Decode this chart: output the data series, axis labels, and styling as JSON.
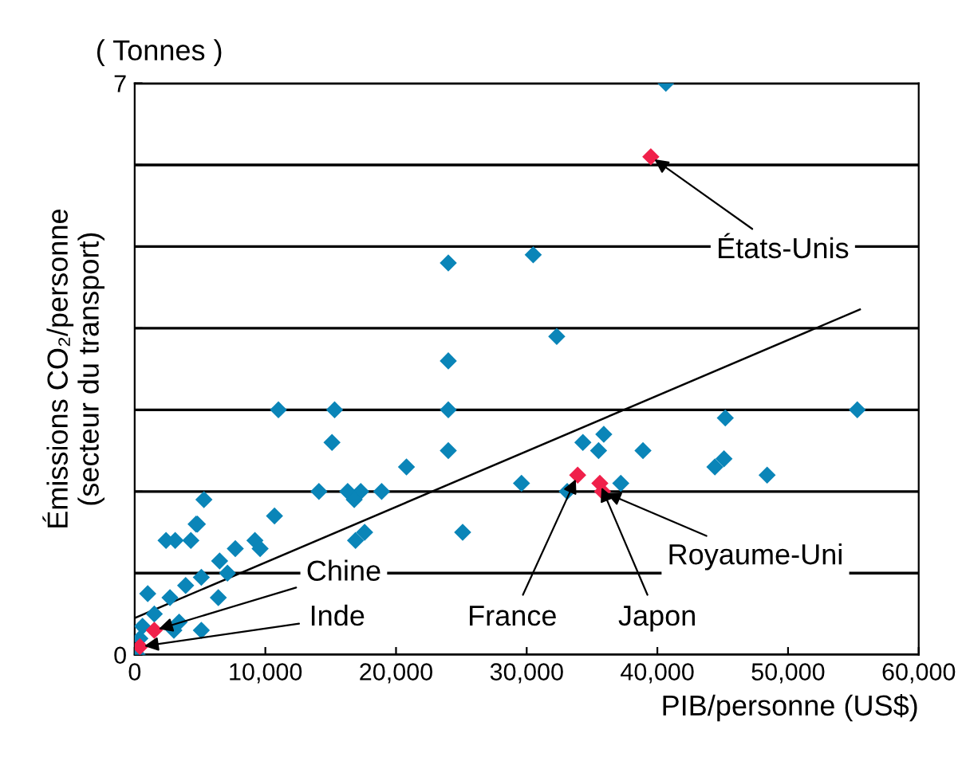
{
  "chart_data": {
    "type": "scatter",
    "xlabel": "PIB/personne (US$)",
    "ylabel": "Émissions CO₂/personne\n(secteur du transport)",
    "xlim": [
      0,
      60000
    ],
    "xticks": [
      {
        "value": 0,
        "label": "0"
      },
      {
        "value": 10000,
        "label": "10,000"
      },
      {
        "value": 20000,
        "label": "20,000"
      },
      {
        "value": 30000,
        "label": "30,000"
      },
      {
        "value": 40000,
        "label": "40,000"
      },
      {
        "value": 50000,
        "label": "50,000"
      },
      {
        "value": 60000,
        "label": "60,000"
      }
    ],
    "ylim": [
      0,
      7
    ],
    "yticks": [
      0,
      {
        "value": 1,
        "label": null
      },
      {
        "value": 2,
        "label": null
      },
      {
        "value": 3,
        "label": null
      },
      {
        "value": 4,
        "label": null
      },
      {
        "value": 5,
        "label": null
      },
      {
        "value": 6,
        "label": null
      },
      7
    ],
    "grid": "y",
    "marker": "diamond",
    "series": [
      {
        "color": "#0a85b8",
        "x": [
          40650,
          30500,
          24000,
          32300,
          24000,
          15300,
          11000,
          24000,
          15100,
          24000,
          20800,
          17300,
          14100,
          16300,
          16800,
          18900,
          25100,
          17600,
          5300,
          4800,
          3100,
          10700,
          55300,
          45200,
          35900,
          34300,
          35500,
          38900,
          45100,
          44400,
          48400,
          29600,
          37200,
          33100,
          9200,
          9600,
          7700,
          6500,
          5100,
          3900,
          2700,
          1500,
          600,
          400,
          200,
          2400,
          4300,
          4700,
          16900,
          5100,
          3000,
          6400,
          3400,
          1000,
          7100
        ],
        "values": [
          7.0,
          4.9,
          4.8,
          3.9,
          3.6,
          3.0,
          3.0,
          3.0,
          2.6,
          2.5,
          2.3,
          2.0,
          2.0,
          2.0,
          1.9,
          2.0,
          1.5,
          1.5,
          1.9,
          1.6,
          1.4,
          1.7,
          3.0,
          2.9,
          2.7,
          2.6,
          2.5,
          2.5,
          2.4,
          2.3,
          2.2,
          2.1,
          2.1,
          2.0,
          1.4,
          1.3,
          1.3,
          1.15,
          0.95,
          0.85,
          0.7,
          0.5,
          0.35,
          0.2,
          0.0,
          1.4,
          1.4,
          1.6,
          1.4,
          0.3,
          0.3,
          0.7,
          0.4,
          0.75,
          1.0
        ]
      },
      {
        "color": "#f0204a",
        "x": [
          39500,
          33900,
          35600,
          35800,
          1500,
          400
        ],
        "values": [
          6.1,
          2.2,
          2.1,
          2.0,
          0.3,
          0.1
        ]
      },
      {
        "type": "line",
        "marker": "none",
        "color": "#000000",
        "x": [
          0,
          55500
        ],
        "values": [
          0.45,
          4.23
        ]
      }
    ],
    "annotations": [
      "( Tonnes )",
      {
        "text": "États-Unis",
        "x": 39500,
        "y": 6.1
      },
      {
        "text": "Royaume-Uni",
        "x": 35800,
        "y": 2.0
      },
      {
        "text": "France",
        "x": 33900,
        "y": 2.2
      },
      {
        "text": "Japon",
        "x": 35600,
        "y": 2.1
      },
      {
        "text": "Chine",
        "x": 1500,
        "y": 0.3
      },
      {
        "text": "Inde",
        "x": 400,
        "y": 0.1
      }
    ]
  }
}
